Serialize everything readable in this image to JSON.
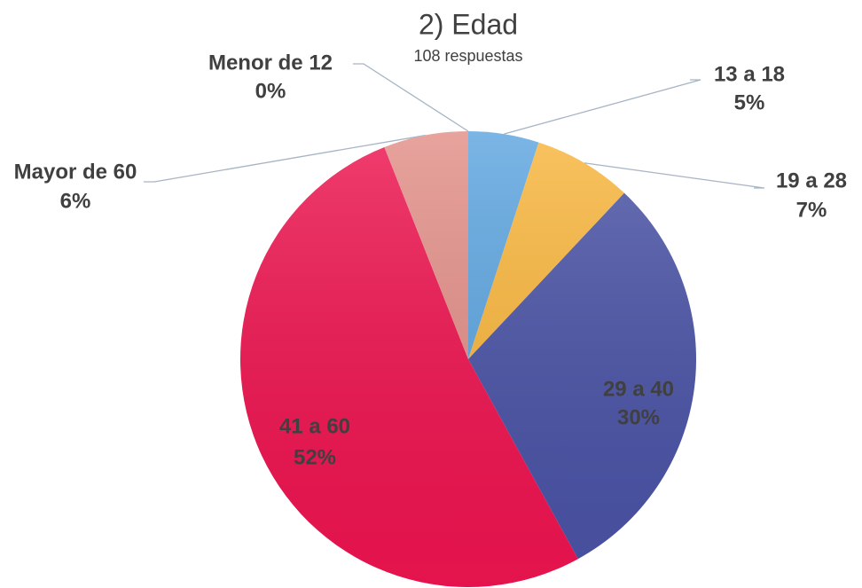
{
  "chart_data": {
    "type": "pie",
    "title": "2) Edad",
    "subtitle": "108 respuestas",
    "categories": [
      "Menor de 12",
      "13 a 18",
      "19 a 28",
      "29 a 40",
      "41 a 60",
      "Mayor de 60"
    ],
    "values": [
      0,
      5,
      7,
      30,
      52,
      6
    ],
    "value_labels": [
      "0%",
      "5%",
      "7%",
      "30%",
      "52%",
      "6%"
    ],
    "colors": [
      "#7aa6d6",
      "#5da5e0",
      "#f9b63d",
      "#4a53a6",
      "#ee1450",
      "#e38f88"
    ]
  }
}
